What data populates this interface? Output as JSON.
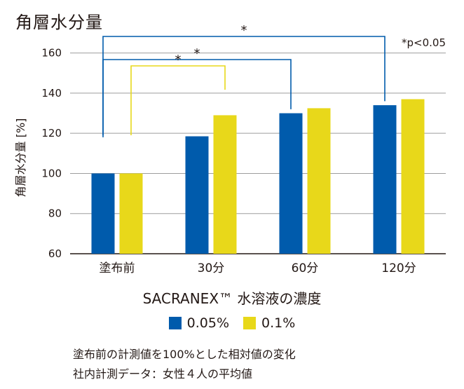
{
  "chart_data": {
    "type": "bar",
    "title": "角層水分量",
    "ylabel": "角層水分量 [%]",
    "xlabel": "SACRANEX™ 水溶液の濃度",
    "categories": [
      "塗布前",
      "30分",
      "60分",
      "120分"
    ],
    "series": [
      {
        "name": "0.05%",
        "color": "#005bac",
        "values": [
          100,
          118.5,
          130,
          134
        ]
      },
      {
        "name": "0.1%",
        "color": "#e8d81a",
        "values": [
          100,
          129,
          132.5,
          137
        ]
      }
    ],
    "ylim": [
      60,
      170
    ],
    "yticks": [
      60,
      80,
      100,
      120,
      140,
      160
    ],
    "grid": true,
    "significance": {
      "marker": "*",
      "note": "*p<0.05",
      "brackets": [
        {
          "from_category": 0,
          "to_category": 3,
          "series": "0.05%",
          "color": "#005bac"
        },
        {
          "from_category": 0,
          "to_category": 2,
          "series": "0.05%",
          "color": "#005bac"
        },
        {
          "from_category": 0,
          "to_category": 1,
          "series": "0.1%",
          "color": "#e8d81a"
        }
      ]
    }
  },
  "notes": [
    "塗布前の計測値を100%とした相対値の変化",
    "社内計測データ：女性４人の平均値"
  ]
}
